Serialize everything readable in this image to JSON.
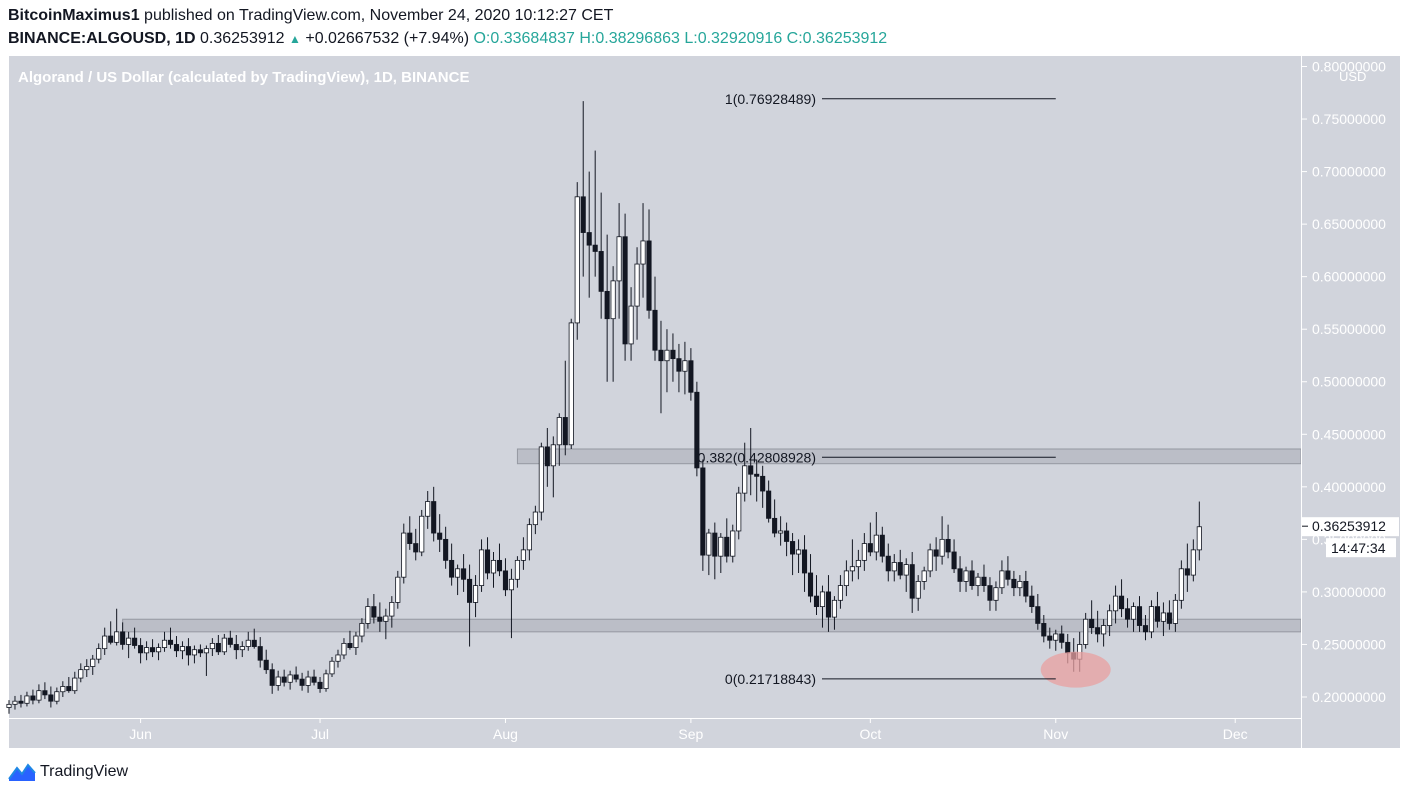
{
  "header": {
    "author": "BitcoinMaximus1",
    "published_text": "published on TradingView.com, November 24, 2020 10:12:27 CET",
    "symbol": "BINANCE:ALGOUSD, 1D",
    "last": "0.36253912",
    "change": "+0.02667532 (+7.94%)",
    "o_label": "O:",
    "o_value": "0.33684837",
    "h_label": "H:",
    "h_value": "0.38296863",
    "l_label": "L:",
    "l_value": "0.32920916",
    "c_label": "C:",
    "c_value": "0.36253912"
  },
  "footer": {
    "brand": "TradingView"
  },
  "colors": {
    "background": "#d1d4dc",
    "candle_up": "#ffffff",
    "candle_down": "#131722",
    "band": "#b2b5be",
    "highlight": "#e8a0a0"
  },
  "chart_data": {
    "type": "candlestick",
    "title": "Algorand / US Dollar (calculated by TradingView), 1D, BINANCE",
    "y_unit": "USD",
    "ylim": [
      0.18,
      0.81
    ],
    "y_ticks": [
      "0.80000000",
      "0.75000000",
      "0.70000000",
      "0.65000000",
      "0.60000000",
      "0.55000000",
      "0.50000000",
      "0.45000000",
      "0.40000000",
      "0.35000000",
      "0.30000000",
      "0.25000000",
      "0.20000000"
    ],
    "x_labels": [
      {
        "label": "Jun",
        "date": "2020-06-01"
      },
      {
        "label": "Jul",
        "date": "2020-07-01"
      },
      {
        "label": "Aug",
        "date": "2020-08-01"
      },
      {
        "label": "Sep",
        "date": "2020-09-01"
      },
      {
        "label": "Oct",
        "date": "2020-10-01"
      },
      {
        "label": "Nov",
        "date": "2020-11-01"
      },
      {
        "label": "Dec",
        "date": "2020-12-01"
      }
    ],
    "x_range": [
      "2020-05-10",
      "2020-12-12"
    ],
    "price_label": "0.36253912",
    "countdown": "14:47:34",
    "fib_levels": [
      {
        "label": "1(0.76928489)",
        "value": 0.76928489,
        "from": "2020-08-14",
        "to": "2020-11-01"
      },
      {
        "label": "0.382(0.42808928)",
        "value": 0.42808928,
        "from": "2020-08-14",
        "to": "2020-11-01"
      },
      {
        "label": "0(0.21718843)",
        "value": 0.21718843,
        "from": "2020-08-14",
        "to": "2020-11-01"
      }
    ],
    "zones": [
      {
        "low": 0.422,
        "high": 0.436,
        "from": "2020-08-03"
      },
      {
        "low": 0.262,
        "high": 0.274,
        "from": "2020-05-29"
      }
    ],
    "highlight": {
      "date": "2020-11-04",
      "value": 0.226
    },
    "start_date": "2020-05-10",
    "candles": [
      [
        0.19,
        0.197,
        0.184,
        0.193
      ],
      [
        0.193,
        0.201,
        0.188,
        0.196
      ],
      [
        0.196,
        0.202,
        0.19,
        0.194
      ],
      [
        0.194,
        0.205,
        0.191,
        0.201
      ],
      [
        0.201,
        0.207,
        0.193,
        0.197
      ],
      [
        0.197,
        0.212,
        0.194,
        0.206
      ],
      [
        0.206,
        0.214,
        0.198,
        0.202
      ],
      [
        0.202,
        0.21,
        0.19,
        0.196
      ],
      [
        0.196,
        0.209,
        0.193,
        0.205
      ],
      [
        0.205,
        0.215,
        0.2,
        0.21
      ],
      [
        0.21,
        0.219,
        0.204,
        0.206
      ],
      [
        0.206,
        0.224,
        0.203,
        0.218
      ],
      [
        0.218,
        0.232,
        0.214,
        0.226
      ],
      [
        0.226,
        0.236,
        0.219,
        0.229
      ],
      [
        0.229,
        0.24,
        0.221,
        0.236
      ],
      [
        0.236,
        0.251,
        0.232,
        0.246
      ],
      [
        0.246,
        0.266,
        0.24,
        0.258
      ],
      [
        0.258,
        0.272,
        0.25,
        0.252
      ],
      [
        0.252,
        0.284,
        0.249,
        0.262
      ],
      [
        0.262,
        0.271,
        0.245,
        0.25
      ],
      [
        0.25,
        0.262,
        0.237,
        0.256
      ],
      [
        0.256,
        0.266,
        0.246,
        0.249
      ],
      [
        0.249,
        0.256,
        0.232,
        0.242
      ],
      [
        0.242,
        0.253,
        0.235,
        0.247
      ],
      [
        0.247,
        0.255,
        0.238,
        0.243
      ],
      [
        0.243,
        0.251,
        0.235,
        0.247
      ],
      [
        0.247,
        0.262,
        0.243,
        0.254
      ],
      [
        0.254,
        0.266,
        0.246,
        0.25
      ],
      [
        0.25,
        0.258,
        0.238,
        0.244
      ],
      [
        0.244,
        0.253,
        0.236,
        0.248
      ],
      [
        0.248,
        0.256,
        0.23,
        0.24
      ],
      [
        0.24,
        0.249,
        0.232,
        0.245
      ],
      [
        0.245,
        0.25,
        0.238,
        0.242
      ],
      [
        0.242,
        0.249,
        0.22,
        0.246
      ],
      [
        0.246,
        0.256,
        0.239,
        0.251
      ],
      [
        0.251,
        0.259,
        0.24,
        0.243
      ],
      [
        0.243,
        0.26,
        0.24,
        0.256
      ],
      [
        0.256,
        0.263,
        0.247,
        0.25
      ],
      [
        0.25,
        0.259,
        0.236,
        0.245
      ],
      [
        0.245,
        0.253,
        0.238,
        0.248
      ],
      [
        0.248,
        0.262,
        0.244,
        0.254
      ],
      [
        0.254,
        0.265,
        0.246,
        0.248
      ],
      [
        0.248,
        0.257,
        0.228,
        0.235
      ],
      [
        0.235,
        0.245,
        0.222,
        0.226
      ],
      [
        0.226,
        0.232,
        0.203,
        0.211
      ],
      [
        0.211,
        0.225,
        0.206,
        0.219
      ],
      [
        0.219,
        0.226,
        0.21,
        0.214
      ],
      [
        0.214,
        0.225,
        0.207,
        0.221
      ],
      [
        0.221,
        0.229,
        0.214,
        0.217
      ],
      [
        0.217,
        0.223,
        0.206,
        0.211
      ],
      [
        0.211,
        0.225,
        0.204,
        0.219
      ],
      [
        0.219,
        0.226,
        0.211,
        0.214
      ],
      [
        0.214,
        0.219,
        0.204,
        0.208
      ],
      [
        0.208,
        0.226,
        0.205,
        0.222
      ],
      [
        0.222,
        0.238,
        0.219,
        0.234
      ],
      [
        0.234,
        0.245,
        0.228,
        0.24
      ],
      [
        0.24,
        0.256,
        0.236,
        0.251
      ],
      [
        0.251,
        0.263,
        0.245,
        0.247
      ],
      [
        0.247,
        0.262,
        0.24,
        0.258
      ],
      [
        0.258,
        0.275,
        0.252,
        0.27
      ],
      [
        0.27,
        0.294,
        0.265,
        0.286
      ],
      [
        0.286,
        0.298,
        0.27,
        0.276
      ],
      [
        0.276,
        0.29,
        0.262,
        0.272
      ],
      [
        0.272,
        0.284,
        0.255,
        0.277
      ],
      [
        0.277,
        0.296,
        0.266,
        0.29
      ],
      [
        0.29,
        0.32,
        0.284,
        0.314
      ],
      [
        0.314,
        0.365,
        0.308,
        0.356
      ],
      [
        0.356,
        0.372,
        0.34,
        0.346
      ],
      [
        0.346,
        0.36,
        0.33,
        0.338
      ],
      [
        0.338,
        0.378,
        0.334,
        0.372
      ],
      [
        0.372,
        0.396,
        0.36,
        0.386
      ],
      [
        0.386,
        0.4,
        0.348,
        0.356
      ],
      [
        0.356,
        0.374,
        0.338,
        0.35
      ],
      [
        0.35,
        0.362,
        0.322,
        0.33
      ],
      [
        0.33,
        0.346,
        0.306,
        0.314
      ],
      [
        0.314,
        0.326,
        0.297,
        0.322
      ],
      [
        0.322,
        0.336,
        0.3,
        0.312
      ],
      [
        0.312,
        0.326,
        0.248,
        0.29
      ],
      [
        0.29,
        0.316,
        0.276,
        0.306
      ],
      [
        0.306,
        0.35,
        0.3,
        0.34
      ],
      [
        0.34,
        0.352,
        0.312,
        0.318
      ],
      [
        0.318,
        0.338,
        0.304,
        0.33
      ],
      [
        0.33,
        0.346,
        0.315,
        0.32
      ],
      [
        0.32,
        0.332,
        0.296,
        0.302
      ],
      [
        0.302,
        0.322,
        0.256,
        0.312
      ],
      [
        0.312,
        0.334,
        0.304,
        0.33
      ],
      [
        0.33,
        0.352,
        0.321,
        0.34
      ],
      [
        0.34,
        0.37,
        0.33,
        0.364
      ],
      [
        0.364,
        0.382,
        0.355,
        0.376
      ],
      [
        0.376,
        0.442,
        0.368,
        0.438
      ],
      [
        0.438,
        0.456,
        0.4,
        0.42
      ],
      [
        0.42,
        0.448,
        0.39,
        0.44
      ],
      [
        0.44,
        0.47,
        0.42,
        0.466
      ],
      [
        0.466,
        0.52,
        0.43,
        0.44
      ],
      [
        0.44,
        0.56,
        0.436,
        0.556
      ],
      [
        0.556,
        0.69,
        0.54,
        0.676
      ],
      [
        0.676,
        0.767,
        0.6,
        0.642
      ],
      [
        0.642,
        0.7,
        0.58,
        0.63
      ],
      [
        0.63,
        0.72,
        0.6,
        0.624
      ],
      [
        0.624,
        0.68,
        0.56,
        0.586
      ],
      [
        0.586,
        0.64,
        0.5,
        0.56
      ],
      [
        0.56,
        0.61,
        0.5,
        0.596
      ],
      [
        0.596,
        0.67,
        0.56,
        0.638
      ],
      [
        0.638,
        0.66,
        0.52,
        0.536
      ],
      [
        0.536,
        0.59,
        0.52,
        0.572
      ],
      [
        0.572,
        0.628,
        0.54,
        0.612
      ],
      [
        0.612,
        0.67,
        0.58,
        0.634
      ],
      [
        0.634,
        0.664,
        0.56,
        0.568
      ],
      [
        0.568,
        0.6,
        0.52,
        0.53
      ],
      [
        0.53,
        0.558,
        0.47,
        0.52
      ],
      [
        0.52,
        0.55,
        0.49,
        0.53
      ],
      [
        0.53,
        0.546,
        0.5,
        0.522
      ],
      [
        0.522,
        0.536,
        0.49,
        0.51
      ],
      [
        0.51,
        0.538,
        0.488,
        0.52
      ],
      [
        0.52,
        0.532,
        0.482,
        0.49
      ],
      [
        0.49,
        0.5,
        0.41,
        0.418
      ],
      [
        0.418,
        0.426,
        0.32,
        0.335
      ],
      [
        0.335,
        0.36,
        0.316,
        0.356
      ],
      [
        0.356,
        0.366,
        0.312,
        0.334
      ],
      [
        0.334,
        0.356,
        0.318,
        0.352
      ],
      [
        0.352,
        0.37,
        0.328,
        0.334
      ],
      [
        0.334,
        0.364,
        0.328,
        0.358
      ],
      [
        0.358,
        0.4,
        0.35,
        0.394
      ],
      [
        0.394,
        0.442,
        0.386,
        0.42
      ],
      [
        0.42,
        0.456,
        0.392,
        0.412
      ],
      [
        0.412,
        0.426,
        0.386,
        0.41
      ],
      [
        0.41,
        0.42,
        0.38,
        0.396
      ],
      [
        0.396,
        0.406,
        0.366,
        0.37
      ],
      [
        0.37,
        0.388,
        0.352,
        0.356
      ],
      [
        0.356,
        0.372,
        0.344,
        0.358
      ],
      [
        0.358,
        0.366,
        0.334,
        0.348
      ],
      [
        0.348,
        0.356,
        0.316,
        0.336
      ],
      [
        0.336,
        0.35,
        0.318,
        0.34
      ],
      [
        0.34,
        0.354,
        0.3,
        0.318
      ],
      [
        0.318,
        0.336,
        0.29,
        0.296
      ],
      [
        0.296,
        0.316,
        0.278,
        0.286
      ],
      [
        0.286,
        0.306,
        0.266,
        0.3
      ],
      [
        0.3,
        0.316,
        0.262,
        0.276
      ],
      [
        0.276,
        0.296,
        0.264,
        0.292
      ],
      [
        0.292,
        0.316,
        0.284,
        0.306
      ],
      [
        0.306,
        0.33,
        0.296,
        0.32
      ],
      [
        0.32,
        0.35,
        0.31,
        0.324
      ],
      [
        0.324,
        0.34,
        0.312,
        0.33
      ],
      [
        0.33,
        0.356,
        0.32,
        0.346
      ],
      [
        0.346,
        0.366,
        0.334,
        0.338
      ],
      [
        0.338,
        0.376,
        0.33,
        0.354
      ],
      [
        0.354,
        0.362,
        0.328,
        0.334
      ],
      [
        0.334,
        0.346,
        0.31,
        0.32
      ],
      [
        0.32,
        0.336,
        0.31,
        0.328
      ],
      [
        0.328,
        0.34,
        0.312,
        0.316
      ],
      [
        0.316,
        0.332,
        0.3,
        0.326
      ],
      [
        0.326,
        0.338,
        0.28,
        0.294
      ],
      [
        0.294,
        0.316,
        0.282,
        0.31
      ],
      [
        0.31,
        0.324,
        0.302,
        0.32
      ],
      [
        0.32,
        0.346,
        0.314,
        0.34
      ],
      [
        0.34,
        0.352,
        0.32,
        0.334
      ],
      [
        0.334,
        0.372,
        0.326,
        0.35
      ],
      [
        0.35,
        0.364,
        0.332,
        0.338
      ],
      [
        0.338,
        0.35,
        0.318,
        0.322
      ],
      [
        0.322,
        0.334,
        0.3,
        0.31
      ],
      [
        0.31,
        0.324,
        0.3,
        0.32
      ],
      [
        0.32,
        0.33,
        0.302,
        0.306
      ],
      [
        0.306,
        0.318,
        0.296,
        0.314
      ],
      [
        0.314,
        0.326,
        0.3,
        0.306
      ],
      [
        0.306,
        0.314,
        0.282,
        0.292
      ],
      [
        0.292,
        0.31,
        0.282,
        0.304
      ],
      [
        0.304,
        0.33,
        0.298,
        0.32
      ],
      [
        0.32,
        0.334,
        0.306,
        0.312
      ],
      [
        0.312,
        0.32,
        0.296,
        0.304
      ],
      [
        0.304,
        0.316,
        0.296,
        0.31
      ],
      [
        0.31,
        0.32,
        0.29,
        0.296
      ],
      [
        0.296,
        0.306,
        0.28,
        0.286
      ],
      [
        0.286,
        0.298,
        0.264,
        0.27
      ],
      [
        0.27,
        0.278,
        0.252,
        0.258
      ],
      [
        0.258,
        0.266,
        0.246,
        0.254
      ],
      [
        0.254,
        0.264,
        0.244,
        0.26
      ],
      [
        0.26,
        0.268,
        0.246,
        0.252
      ],
      [
        0.252,
        0.26,
        0.232,
        0.242
      ],
      [
        0.242,
        0.256,
        0.224,
        0.236
      ],
      [
        0.236,
        0.262,
        0.224,
        0.25
      ],
      [
        0.25,
        0.28,
        0.246,
        0.274
      ],
      [
        0.274,
        0.292,
        0.26,
        0.266
      ],
      [
        0.266,
        0.282,
        0.252,
        0.26
      ],
      [
        0.26,
        0.274,
        0.248,
        0.268
      ],
      [
        0.268,
        0.288,
        0.258,
        0.282
      ],
      [
        0.282,
        0.306,
        0.27,
        0.296
      ],
      [
        0.296,
        0.312,
        0.276,
        0.284
      ],
      [
        0.284,
        0.294,
        0.266,
        0.274
      ],
      [
        0.274,
        0.29,
        0.262,
        0.286
      ],
      [
        0.286,
        0.296,
        0.262,
        0.268
      ],
      [
        0.268,
        0.278,
        0.254,
        0.262
      ],
      [
        0.262,
        0.292,
        0.256,
        0.286
      ],
      [
        0.286,
        0.3,
        0.266,
        0.272
      ],
      [
        0.272,
        0.29,
        0.258,
        0.28
      ],
      [
        0.28,
        0.292,
        0.264,
        0.27
      ],
      [
        0.27,
        0.298,
        0.262,
        0.292
      ],
      [
        0.292,
        0.33,
        0.284,
        0.322
      ],
      [
        0.322,
        0.346,
        0.3,
        0.316
      ],
      [
        0.316,
        0.35,
        0.31,
        0.34
      ],
      [
        0.34,
        0.386,
        0.33,
        0.362
      ]
    ]
  }
}
